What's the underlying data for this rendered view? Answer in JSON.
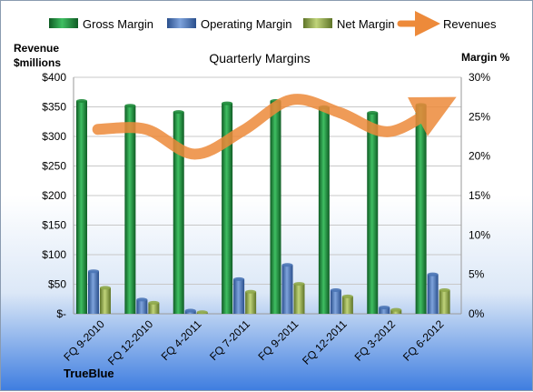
{
  "chart_data": {
    "type": "bar",
    "title": "Quarterly Margins",
    "categories": [
      "FQ 9-2010",
      "FQ 12-2010",
      "FQ 4-2011",
      "FQ 7-2011",
      "FQ 9-2011",
      "FQ 12-2011",
      "FQ 3-2012",
      "FQ 6-2012"
    ],
    "series": [
      {
        "name": "Gross Margin",
        "axis": "right",
        "unit": "%",
        "color": "#1e8a3a",
        "values": [
          27.0,
          26.4,
          25.6,
          26.7,
          27.0,
          26.2,
          25.5,
          26.5
        ]
      },
      {
        "name": "Operating Margin",
        "axis": "right",
        "unit": "%",
        "color": "#4a74b5",
        "values": [
          5.4,
          1.8,
          0.4,
          4.4,
          6.2,
          3.0,
          0.8,
          5.0
        ]
      },
      {
        "name": "Net Margin",
        "axis": "right",
        "unit": "%",
        "color": "#8fa84a",
        "values": [
          3.3,
          1.4,
          0.2,
          2.8,
          3.8,
          2.2,
          0.5,
          3.0
        ]
      },
      {
        "name": "Revenues",
        "axis": "left",
        "unit": "$millions",
        "type": "line",
        "color": "#ed8a3a",
        "values": [
          312,
          312,
          270,
          310,
          362,
          340,
          308,
          350
        ]
      }
    ],
    "y_left": {
      "label": [
        "Revenue",
        "$millions"
      ],
      "ylim": [
        0,
        400
      ],
      "ticks": [
        "$-",
        "$50",
        "$100",
        "$150",
        "$200",
        "$250",
        "$300",
        "$350",
        "$400"
      ]
    },
    "y_right": {
      "label": "Margin  %",
      "ylim": [
        0,
        30
      ],
      "ticks": [
        "0%",
        "5%",
        "10%",
        "15%",
        "20%",
        "25%",
        "30%"
      ]
    },
    "legend_position": "top",
    "grid": true
  },
  "brand": "TrueBlue"
}
